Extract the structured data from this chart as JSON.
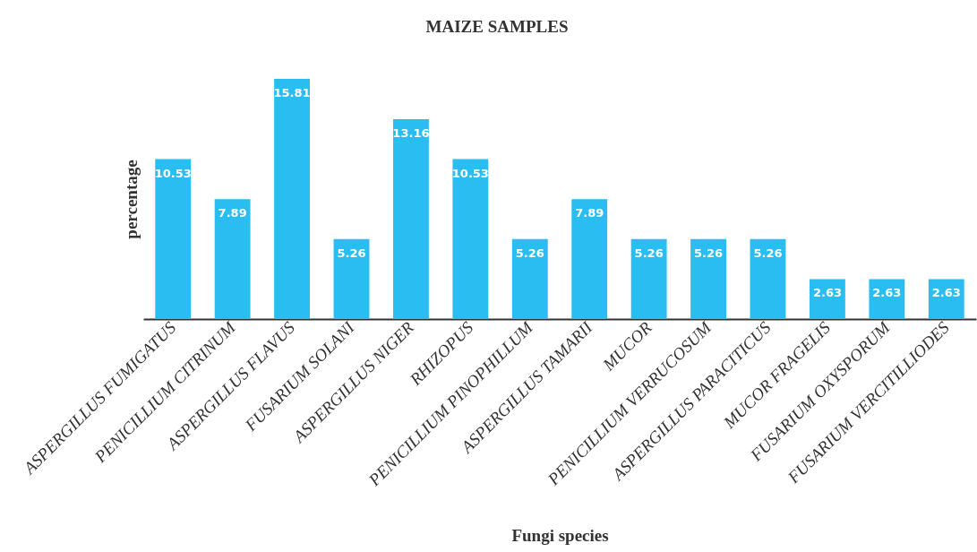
{
  "chart_data": {
    "type": "bar",
    "title": "MAIZE SAMPLES",
    "xlabel": "Fungi species",
    "ylabel": "percentage",
    "categories": [
      "ASPERGILLUS FUMIGATUS",
      "PENICILLIUM CITRINUM",
      "ASPERGILLUS FLAVUS",
      "FUSARIUM SOLANI",
      "ASPERGILLUS NIGER",
      "RHIZOPUS",
      "PENICILLIUM PINOPHILLUM",
      "ASPERGILLUS TAMARII",
      "MUCOR",
      "PENICILLIUM VERRUCOSUM",
      "ASPERGILLUS PARACITICUS",
      "MUCOR  FRAGELIS",
      "FUSARIUM OXYSPORUM",
      "FUSARIUM VERCITILLIODES"
    ],
    "values": [
      10.53,
      7.89,
      15.81,
      5.26,
      13.16,
      10.53,
      5.26,
      7.89,
      5.26,
      5.26,
      5.26,
      2.63,
      2.63,
      2.63
    ],
    "color": "#29bdf2",
    "data_labels": true,
    "tick_labels": "x",
    "grid": false
  }
}
